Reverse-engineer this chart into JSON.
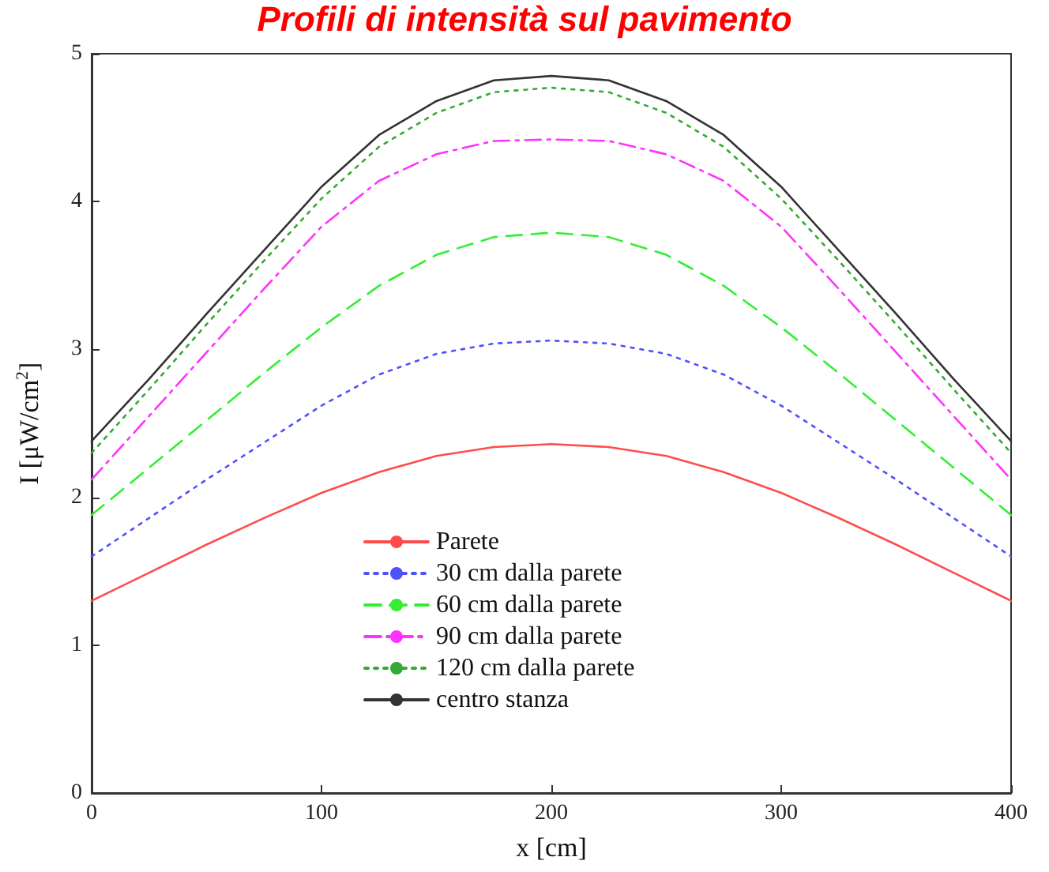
{
  "chart_data": {
    "type": "line",
    "title": "Profili di intensità sul pavimento",
    "xlabel": "x [cm]",
    "ylabel": "I [μW/cm$^{2}$]",
    "x": [
      0,
      25,
      50,
      75,
      100,
      125,
      150,
      175,
      200,
      225,
      250,
      275,
      300,
      325,
      350,
      375,
      400
    ],
    "xlim": [
      0,
      400
    ],
    "xticks": [
      0,
      100,
      200,
      300,
      400
    ],
    "ylim": [
      0,
      5
    ],
    "yticks": [
      0,
      1,
      2,
      3,
      4,
      5
    ],
    "grid": false,
    "legend": "bottom",
    "marker": "none",
    "series": [
      {
        "name": "Parete",
        "color": "#ff4d4d",
        "line_style": "solid",
        "values": [
          1.3,
          1.49,
          1.68,
          1.86,
          2.03,
          2.17,
          2.28,
          2.34,
          2.36,
          2.34,
          2.28,
          2.17,
          2.03,
          1.86,
          1.68,
          1.49,
          1.3
        ]
      },
      {
        "name": "30 cm dalla parete",
        "color": "#5050ff",
        "line_style": "dotted",
        "values": [
          1.6,
          1.86,
          2.12,
          2.37,
          2.62,
          2.83,
          2.97,
          3.04,
          3.06,
          3.04,
          2.97,
          2.83,
          2.62,
          2.37,
          2.12,
          1.86,
          1.6
        ]
      },
      {
        "name": "60 cm dalla parete",
        "color": "#33ee33",
        "line_style": "dashed",
        "values": [
          1.88,
          2.2,
          2.52,
          2.84,
          3.15,
          3.43,
          3.64,
          3.76,
          3.79,
          3.76,
          3.64,
          3.43,
          3.15,
          2.84,
          2.52,
          2.2,
          1.88
        ]
      },
      {
        "name": "90 cm dalla parete",
        "color": "#ff33ff",
        "line_style": "dashdot",
        "values": [
          2.12,
          2.55,
          2.98,
          3.41,
          3.83,
          4.14,
          4.32,
          4.41,
          4.42,
          4.41,
          4.32,
          4.14,
          3.83,
          3.41,
          2.98,
          2.55,
          2.12
        ]
      },
      {
        "name": "120 cm dalla parete",
        "color": "#33aa33",
        "line_style": "dotted",
        "values": [
          2.3,
          2.73,
          3.17,
          3.6,
          4.02,
          4.37,
          4.6,
          4.74,
          4.77,
          4.74,
          4.6,
          4.37,
          4.02,
          3.6,
          3.17,
          2.73,
          2.3
        ]
      },
      {
        "name": "centro stanza",
        "color": "#333333",
        "line_style": "solid",
        "values": [
          2.38,
          2.8,
          3.24,
          3.67,
          4.1,
          4.45,
          4.68,
          4.82,
          4.85,
          4.82,
          4.68,
          4.45,
          4.1,
          3.67,
          3.24,
          2.8,
          2.38
        ]
      }
    ]
  }
}
